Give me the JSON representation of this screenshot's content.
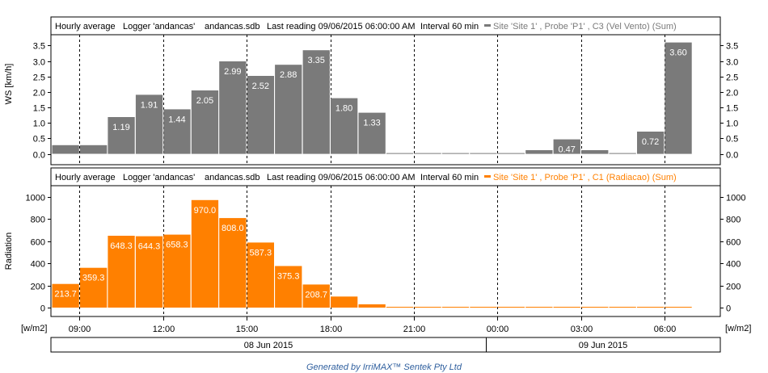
{
  "header_common": {
    "mode": "Hourly average",
    "logger": "Logger 'andancas'",
    "file": "andancas.sdb",
    "last_reading": "Last reading 09/06/2015 06:00:00 AM",
    "interval": "Interval 60 min"
  },
  "x_axis": {
    "ticks": [
      "09:00",
      "12:00",
      "15:00",
      "18:00",
      "21:00",
      "00:00",
      "03:00",
      "06:00"
    ],
    "tick_hours": [
      1,
      4,
      7,
      10,
      13,
      16,
      19,
      22
    ],
    "unit_left": "[w/m2]",
    "unit_right": "[w/m2]",
    "dates": [
      "08 Jun 2015",
      "09 Jun 2015"
    ]
  },
  "colors": {
    "ws": "#7a7a7a",
    "rad": "#ff8000",
    "footer": "#2f5f9e"
  },
  "footer": "Generated by IrriMAX™ Sentek Pty Ltd",
  "chart_data": [
    {
      "type": "bar",
      "legend": "Site 'Site 1' , Probe 'P1' , C3 (Vel Vento) (Sum)",
      "ylabel": "WS [km/h]",
      "ylim": [
        -0.35,
        3.85
      ],
      "y_ticks": [
        "0.0",
        "0.5",
        "1.0",
        "1.5",
        "2.0",
        "2.5",
        "3.0",
        "3.5"
      ],
      "x_start": "08 Jun 2015 08:00",
      "values": [
        0.28,
        0.28,
        1.19,
        1.91,
        1.44,
        2.05,
        2.99,
        2.52,
        2.88,
        3.35,
        1.8,
        1.33,
        0.02,
        0.02,
        0.02,
        0.02,
        0.02,
        0.12,
        0.47,
        0.12,
        0.02,
        0.72,
        3.6
      ],
      "labels": [
        "",
        "",
        "1.19",
        "1.91",
        "1.44",
        "2.05",
        "2.99",
        "2.52",
        "2.88",
        "3.35",
        "1.80",
        "1.33",
        "",
        "",
        "",
        "",
        "",
        "",
        "0.47",
        "",
        "",
        "0.72",
        "3.60"
      ]
    },
    {
      "type": "bar",
      "legend": "Site 'Site 1' , Probe 'P1' , C1 (Radiacao) (Sum)",
      "ylabel": "Radiation",
      "ylim": [
        -80,
        1100
      ],
      "y_ticks": [
        "0",
        "200",
        "400",
        "600",
        "800",
        "1000"
      ],
      "x_start": "08 Jun 2015 08:00",
      "values": [
        213.7,
        359.3,
        648.3,
        644.3,
        658.3,
        970.0,
        808.0,
        587.3,
        375.3,
        208.7,
        100,
        30,
        1,
        1,
        1,
        1,
        1,
        1,
        1,
        1,
        1,
        1,
        1
      ],
      "labels": [
        "213.7",
        "359.3",
        "648.3",
        "644.3",
        "658.3",
        "970.0",
        "808.0",
        "587.3",
        "375.3",
        "208.7",
        "",
        "",
        "",
        "",
        "",
        "",
        "",
        "",
        "",
        "",
        "",
        "",
        ""
      ]
    }
  ]
}
